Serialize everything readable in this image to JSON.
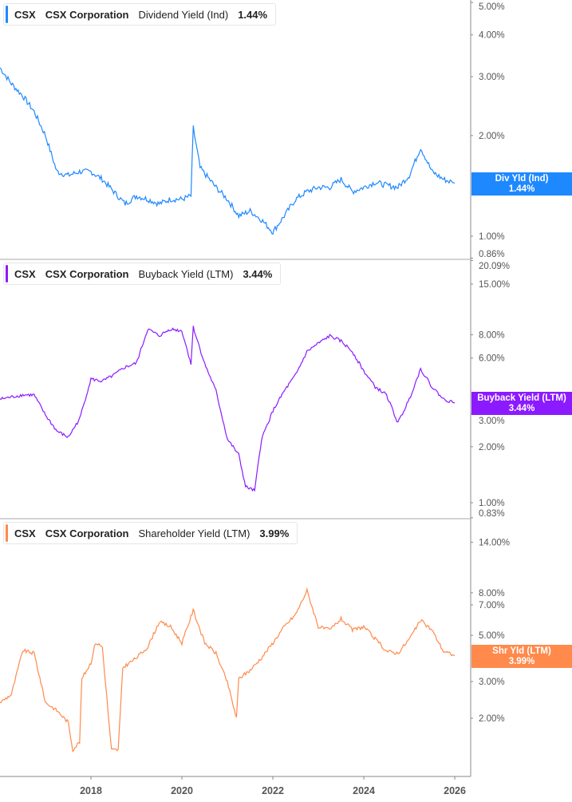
{
  "chart_data": [
    {
      "type": "line",
      "ticker": "CSX",
      "company": "CSX Corporation",
      "metric": "Dividend Yield (Ind)",
      "current_value": "1.44%",
      "tag_label": "Div Yld (Ind)",
      "color": "#1e88ff",
      "yscale": "log",
      "ylim": [
        0.86,
        5.0
      ],
      "y_ticks": [
        "5.00%",
        "4.00%",
        "3.00%",
        "2.00%",
        "1.00%",
        "0.86%"
      ],
      "y_tick_values": [
        5,
        4,
        3,
        2,
        1,
        0.86
      ],
      "points": [
        [
          2016.0,
          3.19
        ],
        [
          2016.25,
          2.86
        ],
        [
          2016.5,
          2.63
        ],
        [
          2016.75,
          2.36
        ],
        [
          2017.0,
          2.0
        ],
        [
          2017.25,
          1.56
        ],
        [
          2017.5,
          1.52
        ],
        [
          2017.75,
          1.56
        ],
        [
          2018.0,
          1.56
        ],
        [
          2018.25,
          1.48
        ],
        [
          2018.5,
          1.36
        ],
        [
          2018.75,
          1.25
        ],
        [
          2019.0,
          1.32
        ],
        [
          2019.25,
          1.29
        ],
        [
          2019.5,
          1.25
        ],
        [
          2019.75,
          1.29
        ],
        [
          2020.0,
          1.29
        ],
        [
          2020.2,
          1.32
        ],
        [
          2020.25,
          2.11
        ],
        [
          2020.4,
          1.6
        ],
        [
          2020.75,
          1.4
        ],
        [
          2021.0,
          1.29
        ],
        [
          2021.25,
          1.15
        ],
        [
          2021.5,
          1.19
        ],
        [
          2021.75,
          1.12
        ],
        [
          2022.0,
          1.03
        ],
        [
          2022.25,
          1.15
        ],
        [
          2022.5,
          1.29
        ],
        [
          2022.75,
          1.36
        ],
        [
          2023.0,
          1.4
        ],
        [
          2023.25,
          1.4
        ],
        [
          2023.5,
          1.48
        ],
        [
          2023.75,
          1.36
        ],
        [
          2024.0,
          1.4
        ],
        [
          2024.25,
          1.45
        ],
        [
          2024.5,
          1.42
        ],
        [
          2024.75,
          1.4
        ],
        [
          2025.0,
          1.52
        ],
        [
          2025.25,
          1.84
        ],
        [
          2025.5,
          1.56
        ],
        [
          2025.75,
          1.48
        ],
        [
          2026.0,
          1.44
        ]
      ]
    },
    {
      "type": "line",
      "ticker": "CSX",
      "company": "CSX Corporation",
      "metric": "Buyback Yield (LTM)",
      "current_value": "3.44%",
      "tag_label": "Buyback Yield (LTM)",
      "color": "#8c1aff",
      "yscale": "log",
      "ylim": [
        0.83,
        20.09
      ],
      "y_ticks": [
        "20.09%",
        "15.00%",
        "8.00%",
        "6.00%",
        "3.00%",
        "2.00%",
        "1.00%",
        "0.83%"
      ],
      "y_tick_values": [
        20.09,
        15,
        8,
        6,
        3,
        2,
        1,
        0.83
      ],
      "points": [
        [
          2016.0,
          3.61
        ],
        [
          2016.5,
          3.8
        ],
        [
          2016.75,
          3.8
        ],
        [
          2017.0,
          2.96
        ],
        [
          2017.25,
          2.43
        ],
        [
          2017.5,
          2.25
        ],
        [
          2017.75,
          2.82
        ],
        [
          2018.0,
          4.63
        ],
        [
          2018.25,
          4.5
        ],
        [
          2018.5,
          4.86
        ],
        [
          2018.75,
          5.36
        ],
        [
          2019.0,
          5.63
        ],
        [
          2019.25,
          8.6
        ],
        [
          2019.5,
          7.9
        ],
        [
          2019.75,
          8.6
        ],
        [
          2020.0,
          8.4
        ],
        [
          2020.2,
          5.6
        ],
        [
          2020.25,
          8.8
        ],
        [
          2020.5,
          5.6
        ],
        [
          2020.75,
          3.99
        ],
        [
          2021.0,
          2.2
        ],
        [
          2021.25,
          1.81
        ],
        [
          2021.4,
          1.22
        ],
        [
          2021.6,
          1.16
        ],
        [
          2021.75,
          2.2
        ],
        [
          2022.0,
          3.12
        ],
        [
          2022.25,
          3.99
        ],
        [
          2022.5,
          4.86
        ],
        [
          2022.75,
          6.5
        ],
        [
          2023.0,
          7.2
        ],
        [
          2023.25,
          7.9
        ],
        [
          2023.5,
          7.4
        ],
        [
          2023.75,
          6.5
        ],
        [
          2024.0,
          5.1
        ],
        [
          2024.25,
          4.2
        ],
        [
          2024.5,
          3.8
        ],
        [
          2024.75,
          2.68
        ],
        [
          2025.0,
          3.61
        ],
        [
          2025.25,
          5.25
        ],
        [
          2025.5,
          4.2
        ],
        [
          2025.75,
          3.61
        ],
        [
          2026.0,
          3.44
        ]
      ]
    },
    {
      "type": "line",
      "ticker": "CSX",
      "company": "CSX Corporation",
      "metric": "Shareholder Yield (LTM)",
      "current_value": "3.99%",
      "tag_label": "Shr Yld (LTM)",
      "color": "#ff8a4c",
      "yscale": "log",
      "ylim": [
        1.1,
        16.0
      ],
      "y_ticks": [
        "14.00%",
        "8.00%",
        "7.00%",
        "5.00%",
        "3.00%",
        "2.00%"
      ],
      "y_tick_values": [
        14,
        8,
        7,
        5,
        3,
        2
      ],
      "points": [
        [
          2016.0,
          2.38
        ],
        [
          2016.25,
          2.6
        ],
        [
          2016.5,
          4.23
        ],
        [
          2016.75,
          4.1
        ],
        [
          2017.0,
          2.38
        ],
        [
          2017.25,
          2.18
        ],
        [
          2017.5,
          1.91
        ],
        [
          2017.6,
          1.41
        ],
        [
          2017.75,
          1.54
        ],
        [
          2017.8,
          3.1
        ],
        [
          2018.0,
          3.7
        ],
        [
          2018.1,
          4.62
        ],
        [
          2018.25,
          4.4
        ],
        [
          2018.45,
          1.41
        ],
        [
          2018.6,
          1.41
        ],
        [
          2018.7,
          3.5
        ],
        [
          2019.0,
          3.9
        ],
        [
          2019.25,
          4.4
        ],
        [
          2019.5,
          5.8
        ],
        [
          2019.75,
          5.5
        ],
        [
          2020.0,
          4.6
        ],
        [
          2020.25,
          6.6
        ],
        [
          2020.5,
          4.6
        ],
        [
          2020.75,
          4.1
        ],
        [
          2021.0,
          2.97
        ],
        [
          2021.2,
          2.0
        ],
        [
          2021.25,
          3.1
        ],
        [
          2021.5,
          3.4
        ],
        [
          2021.75,
          3.9
        ],
        [
          2022.0,
          4.6
        ],
        [
          2022.25,
          5.5
        ],
        [
          2022.5,
          6.3
        ],
        [
          2022.75,
          8.2
        ],
        [
          2023.0,
          5.5
        ],
        [
          2023.25,
          5.3
        ],
        [
          2023.5,
          6.0
        ],
        [
          2023.75,
          5.3
        ],
        [
          2024.0,
          5.5
        ],
        [
          2024.25,
          4.8
        ],
        [
          2024.5,
          4.2
        ],
        [
          2024.75,
          4.1
        ],
        [
          2025.0,
          4.8
        ],
        [
          2025.25,
          5.9
        ],
        [
          2025.5,
          5.3
        ],
        [
          2025.75,
          4.2
        ],
        [
          2026.0,
          3.99
        ]
      ]
    }
  ],
  "x_axis": {
    "ticks": [
      "2018",
      "2020",
      "2022",
      "2024",
      "2026"
    ],
    "tick_values": [
      2018,
      2020,
      2022,
      2024,
      2026
    ],
    "xlim": [
      2016.0,
      2026.35
    ]
  }
}
